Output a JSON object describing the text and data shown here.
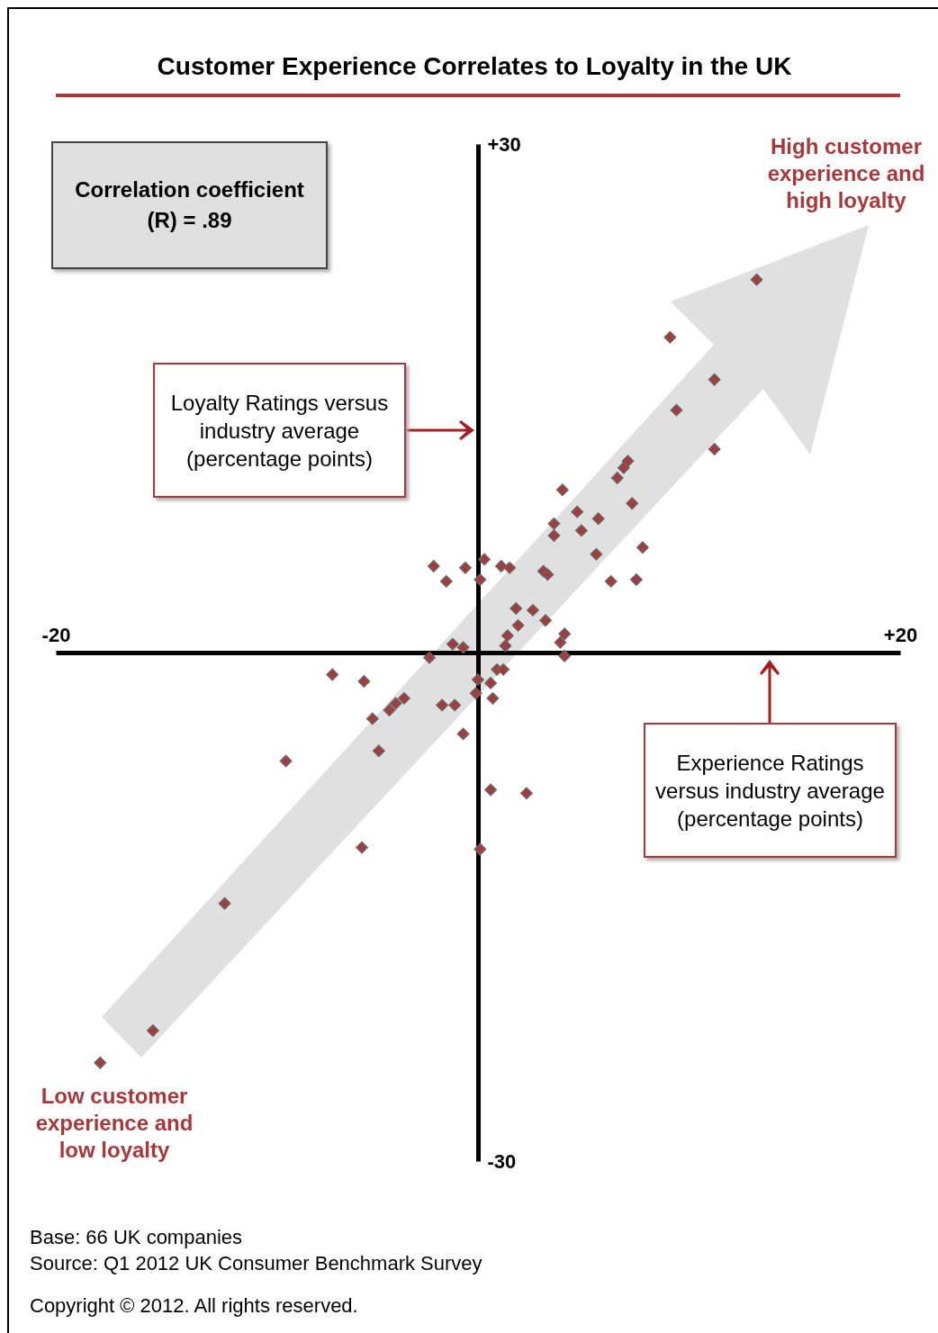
{
  "chart_data": {
    "type": "scatter",
    "title": "Customer Experience Correlates to Loyalty in the UK",
    "x": [
      13.2,
      9.1,
      11.2,
      9.4,
      11.2,
      7.1,
      6.9,
      6.6,
      4.0,
      7.3,
      4.7,
      5.7,
      3.6,
      4.9,
      3.6,
      7.8,
      5.6,
      -2.1,
      -0.6,
      0.3,
      1.1,
      1.5,
      3.1,
      3.3,
      -1.5,
      0.1,
      6.3,
      7.5,
      1.8,
      2.6,
      1.9,
      3.2,
      1.4,
      1.3,
      4.1,
      3.9,
      4.1,
      -1.2,
      -0.7,
      -2.3,
      0.9,
      1.2,
      0.0,
      0.6,
      -0.1,
      0.7,
      -6.9,
      -5.4,
      -3.5,
      -3.9,
      -4.2,
      -5.0,
      -1.7,
      -1.1,
      -0.7,
      -4.7,
      -9.1,
      0.6,
      2.3,
      -5.5,
      0.1,
      -12.0,
      -15.4,
      -17.9
    ],
    "values": [
      22.0,
      18.6,
      16.1,
      14.3,
      12.0,
      11.3,
      10.9,
      10.3,
      9.6,
      8.8,
      8.3,
      7.9,
      7.6,
      7.2,
      6.9,
      6.2,
      5.8,
      5.1,
      5.0,
      5.5,
      5.1,
      5.0,
      4.8,
      4.6,
      4.2,
      4.3,
      4.2,
      4.3,
      2.6,
      2.5,
      1.6,
      1.9,
      1.0,
      0.4,
      1.1,
      0.6,
      -0.2,
      0.5,
      0.3,
      -0.3,
      -1.0,
      -1.0,
      -1.6,
      -1.8,
      -2.4,
      -2.7,
      -1.3,
      -1.7,
      -2.7,
      -3.0,
      -3.4,
      -3.9,
      -3.1,
      -3.1,
      -4.8,
      -5.8,
      -6.4,
      -8.1,
      -8.3,
      -11.5,
      -11.6,
      -14.8,
      -22.3,
      -24.2
    ],
    "color": "#a83a3a",
    "marker": "diamond",
    "xlim": [
      -20,
      20
    ],
    "xticks": [
      {
        "value": -20,
        "label": "-20"
      },
      {
        "value": 20,
        "label": "+20"
      }
    ],
    "ylim": [
      -30,
      30
    ],
    "yticks": [
      {
        "value": -30,
        "label": "-30"
      },
      {
        "value": 30,
        "label": "+30"
      }
    ],
    "annotations": [
      "Correlation coefficient (R) = .89",
      "Loyalty Ratings versus industry average (percentage points)",
      "Experience Ratings versus industry average (percentage points)",
      "High customer experience and high loyalty",
      "Low customer experience and low loyalty",
      "Base: 66 UK companies",
      "Source: Q1 2012 UK Consumer Benchmark Survey",
      "Copyright © 2012. All rights reserved."
    ]
  }
}
